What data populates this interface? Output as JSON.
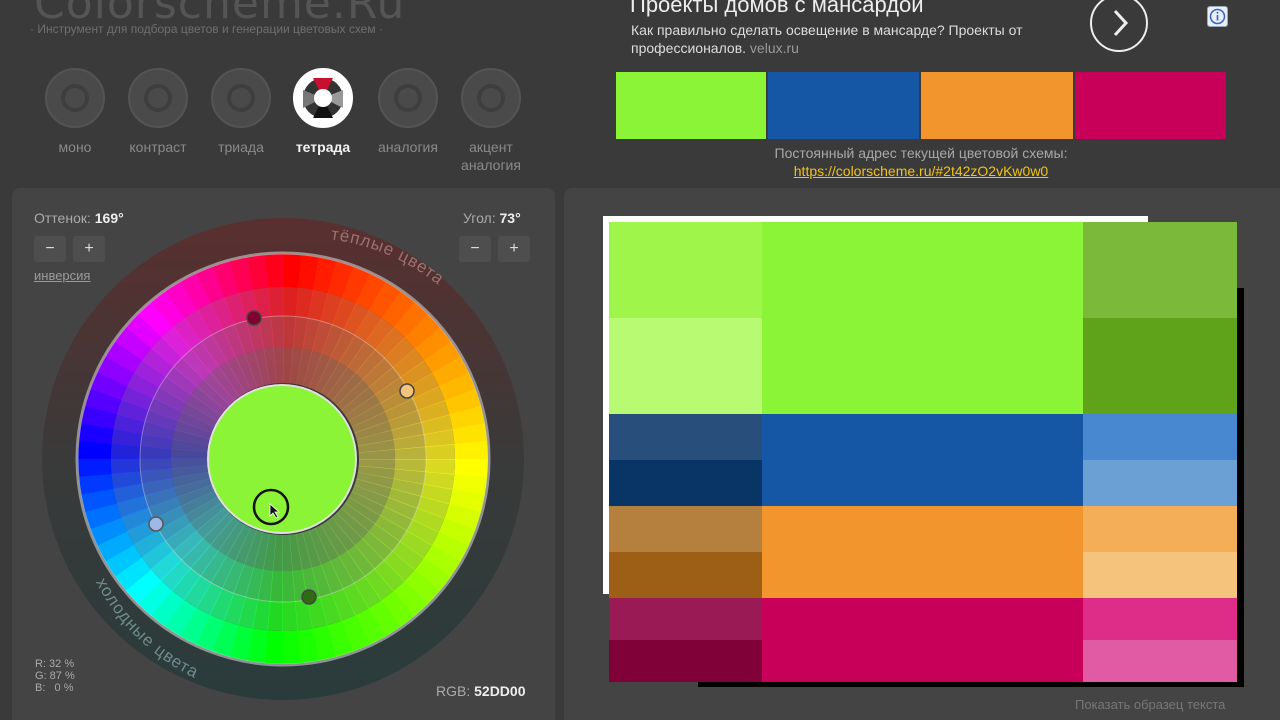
{
  "header": {
    "logo": "Colorscheme.Ru",
    "tagline": "· Инструмент для подбора цветов и генерации цветовых схем ·"
  },
  "modes": [
    {
      "label": "моно",
      "active": false
    },
    {
      "label": "контраст",
      "active": false
    },
    {
      "label": "триада",
      "active": false
    },
    {
      "label": "тетрада",
      "active": true
    },
    {
      "label": "аналогия",
      "active": false
    },
    {
      "label": "акцент аналогия",
      "active": false
    }
  ],
  "ad": {
    "title": "Проекты домов с мансардой",
    "text": "Как правильно сделать освещение в мансарде? Проекты от профессионалов.",
    "domain": "velux.ru",
    "arrow_icon": "chevron-right-icon",
    "info_icon": "info-icon"
  },
  "scheme_colors": [
    "#8cf436",
    "#1556a5",
    "#f2952c",
    "#c8005a"
  ],
  "address": {
    "label": "Постоянный адрес текущей цветовой схемы:",
    "link": "https://colorscheme.ru/#2t42zO2vKw0w0"
  },
  "wheel_panel": {
    "hue_label": "Оттенок:",
    "hue_value": "169°",
    "angle_label": "Угол:",
    "angle_value": "73°",
    "minus": "−",
    "plus": "+",
    "inverse_link": "инверсия",
    "warm_label": "тёплые цвета",
    "cold_label": "холодные цвета",
    "rgb_r": "R: 32 %",
    "rgb_g": "G: 87 %",
    "rgb_b": "B:   0 %",
    "rgb_hex_label": "RGB:",
    "rgb_hex_value": "52DD00",
    "center_color": "#8cf436"
  },
  "preview": {
    "sample_text_link": "Показать образец текста",
    "groups": [
      {
        "main": "#8cf436",
        "left": [
          "#a0f54b",
          "#b8fb72"
        ],
        "right": [
          "#7ab93a",
          "#5ea31a"
        ]
      },
      {
        "main": "#1556a5",
        "left": [
          "#284f7c",
          "#083566"
        ],
        "right": [
          "#4888d0",
          "#6aa0d3"
        ]
      },
      {
        "main": "#f2952c",
        "left": [
          "#b5803d",
          "#9d5f16"
        ],
        "right": [
          "#f4ae58",
          "#f6c37d"
        ]
      },
      {
        "main": "#c8005a",
        "left": [
          "#9a1a56",
          "#800038"
        ],
        "right": [
          "#de2d88",
          "#e05aa4"
        ]
      }
    ]
  }
}
